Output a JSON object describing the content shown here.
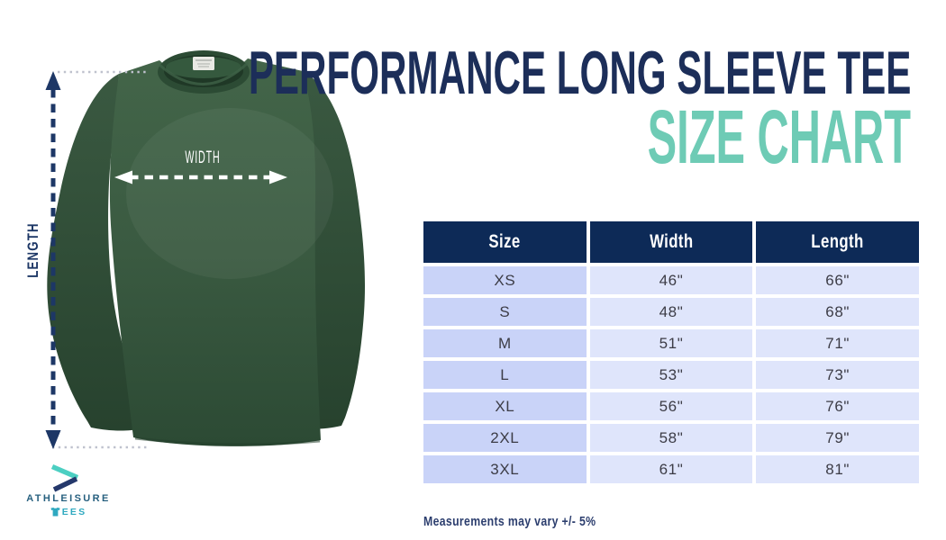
{
  "title": {
    "line1": "PERFORMANCE LONG SLEEVE TEE",
    "line2": "SIZE CHART"
  },
  "diagram": {
    "width_label": "WIDTH",
    "length_label": "LENGTH"
  },
  "size_table": {
    "columns": [
      "Size",
      "Width",
      "Length"
    ],
    "rows": [
      [
        "XS",
        "46\"",
        "66\""
      ],
      [
        "S",
        "48\"",
        "68\""
      ],
      [
        "M",
        "51\"",
        "71\""
      ],
      [
        "L",
        "53\"",
        "73\""
      ],
      [
        "XL",
        "56\"",
        "76\""
      ],
      [
        "2XL",
        "58\"",
        "79\""
      ],
      [
        "3XL",
        "61\"",
        "81\""
      ]
    ]
  },
  "note": "Measurements may vary +/- 5%",
  "logo": {
    "name": "ATHLEISURE",
    "tees_label": "EES"
  },
  "colors": {
    "title_navy": "#1c2e59",
    "accent_teal": "#6ecbb5",
    "table_header_bg": "#0d2a57",
    "size_column_bg": "#c9d3f8",
    "value_column_bg": "#dfe5fb",
    "shirt_green": "#3c5d44",
    "length_arrow_navy": "#1d3766",
    "logo_navy": "#27607f",
    "logo_teal": "#2fa9c0"
  }
}
